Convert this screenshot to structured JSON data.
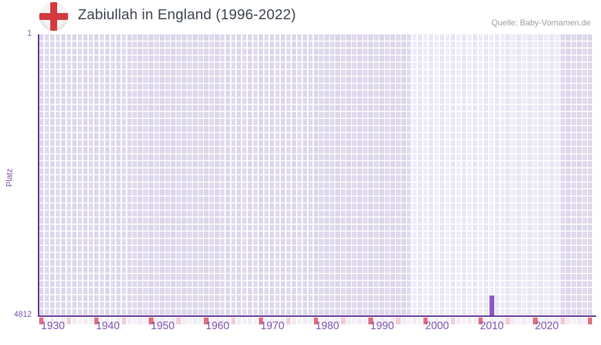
{
  "header": {
    "title": "Zabiullah in England (1996-2022)",
    "source": "Quelle: Baby-Vornamen.de",
    "flag_icon": "england-flag-icon"
  },
  "chart_data": {
    "type": "bar",
    "title": "Zabiullah in England (1996-2022)",
    "source": "Quelle: Baby-Vornamen.de",
    "xlabel": "",
    "ylabel": "Platz",
    "y": {
      "top_tick": "1",
      "bottom_tick": "4812",
      "min": 1,
      "max": 4812,
      "inverted": true
    },
    "x": {
      "start_year": 1928,
      "end_year": 2028,
      "tick_labels": [
        "1930",
        "1940",
        "1950",
        "1960",
        "1970",
        "1980",
        "1990",
        "2000",
        "2010",
        "2020"
      ],
      "tick_interval": 10
    },
    "highlight_period": {
      "from": 1996,
      "to": 2022
    },
    "series": [
      {
        "name": "Platz",
        "points": [
          {
            "year": 2010,
            "rank": 4470
          }
        ]
      }
    ],
    "grid": {
      "columns": 101,
      "rows": 40,
      "legend": "none"
    },
    "bottom_strip": {
      "dark_year_ending": 8,
      "medium_year_ending": 3
    },
    "colors": {
      "label_purple": "#7b51ab",
      "axis_line": "#5b2d90",
      "bar": "#8d59c3",
      "cell_dark": "#dcd6e9",
      "cell_dark_alt": "#e0daee",
      "cell_light": "#efecf8",
      "cell_light_alt": "#e9e5f3",
      "gutter": "#ffffff",
      "strip_base": "#f6f1f8",
      "strip_base_alt": "#f2ecf4",
      "strip_medium": "#f0cdd6",
      "strip_dark": "#e0707c",
      "title_color": "#3c424d",
      "source_color": "#9b9b9b",
      "flag_red": "#d23a3f"
    }
  }
}
